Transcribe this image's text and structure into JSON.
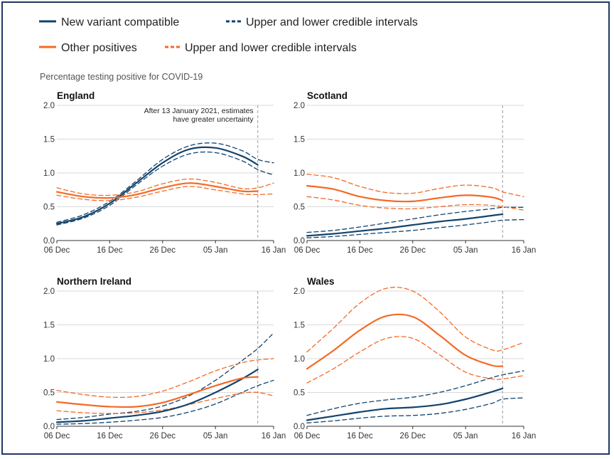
{
  "legend": {
    "items": [
      {
        "label": "New variant compatible",
        "color": "#12436d",
        "style": "solid"
      },
      {
        "label": "Upper and lower credible intervals",
        "color": "#12436d",
        "style": "dashed"
      },
      {
        "label": "Other positives",
        "color": "#f46a25",
        "style": "solid"
      },
      {
        "label": "Upper and lower credible intervals",
        "color": "#f46a25",
        "style": "dashed"
      }
    ]
  },
  "subtitle": "Percentage testing positive for COVID-19",
  "colors": {
    "new_variant": "#12436d",
    "other": "#f46a25",
    "grid": "#d9d9d9",
    "frame": "#1f3864"
  },
  "chart_data": [
    {
      "type": "line",
      "title": "England",
      "annotation": [
        "After 13 January 2021, estimates",
        "have greater uncertainty"
      ],
      "x_ticks": [
        "06 Dec",
        "16 Dec",
        "26 Dec",
        "05 Jan",
        "16 Jan"
      ],
      "x_tick_days": [
        0,
        10,
        20,
        30,
        41
      ],
      "x_domain": [
        0,
        41
      ],
      "y_ticks": [
        "0.0",
        "0.5",
        "1.0",
        "1.5",
        "2.0"
      ],
      "ylim": [
        0,
        2
      ],
      "cutoff_day": 38,
      "series": [
        {
          "name": "New variant compatible",
          "group": "new_variant",
          "x": [
            0,
            5,
            10,
            15,
            20,
            25,
            30,
            35,
            38
          ],
          "y": [
            0.25,
            0.35,
            0.55,
            0.85,
            1.15,
            1.35,
            1.37,
            1.25,
            1.12
          ]
        },
        {
          "group": "new_variant",
          "dashed": true,
          "x": [
            0,
            5,
            10,
            15,
            20,
            25,
            30,
            35,
            38,
            41
          ],
          "y": [
            0.27,
            0.38,
            0.58,
            0.88,
            1.2,
            1.4,
            1.44,
            1.33,
            1.2,
            1.15
          ]
        },
        {
          "group": "new_variant",
          "dashed": true,
          "x": [
            0,
            5,
            10,
            15,
            20,
            25,
            30,
            35,
            38,
            41
          ],
          "y": [
            0.23,
            0.33,
            0.52,
            0.82,
            1.1,
            1.28,
            1.3,
            1.18,
            1.05,
            0.97
          ]
        },
        {
          "name": "Other positives",
          "group": "other",
          "x": [
            0,
            5,
            10,
            15,
            20,
            25,
            30,
            35,
            38
          ],
          "y": [
            0.72,
            0.65,
            0.63,
            0.68,
            0.78,
            0.85,
            0.8,
            0.73,
            0.73
          ]
        },
        {
          "group": "other",
          "dashed": true,
          "x": [
            0,
            5,
            10,
            15,
            20,
            25,
            30,
            35,
            38,
            41
          ],
          "y": [
            0.78,
            0.69,
            0.67,
            0.72,
            0.84,
            0.91,
            0.86,
            0.77,
            0.78,
            0.85
          ]
        },
        {
          "group": "other",
          "dashed": true,
          "x": [
            0,
            5,
            10,
            15,
            20,
            25,
            30,
            35,
            38,
            41
          ],
          "y": [
            0.67,
            0.61,
            0.59,
            0.64,
            0.73,
            0.8,
            0.75,
            0.69,
            0.68,
            0.69
          ]
        }
      ]
    },
    {
      "type": "line",
      "title": "Scotland",
      "x_ticks": [
        "06 Dec",
        "16 Dec",
        "26 Dec",
        "05 Jan",
        "16 Jan"
      ],
      "x_tick_days": [
        0,
        10,
        20,
        30,
        41
      ],
      "x_domain": [
        0,
        41
      ],
      "y_ticks": [
        "0.0",
        "0.5",
        "1.0",
        "1.5",
        "2.0"
      ],
      "ylim": [
        0,
        2
      ],
      "cutoff_day": 37,
      "series": [
        {
          "name": "New variant compatible",
          "group": "new_variant",
          "x": [
            0,
            5,
            10,
            15,
            20,
            25,
            30,
            35,
            37
          ],
          "y": [
            0.07,
            0.1,
            0.14,
            0.18,
            0.23,
            0.28,
            0.32,
            0.37,
            0.39
          ]
        },
        {
          "group": "new_variant",
          "dashed": true,
          "x": [
            0,
            5,
            10,
            15,
            20,
            25,
            30,
            35,
            37,
            41
          ],
          "y": [
            0.12,
            0.15,
            0.2,
            0.26,
            0.32,
            0.38,
            0.43,
            0.47,
            0.49,
            0.49
          ]
        },
        {
          "group": "new_variant",
          "dashed": true,
          "x": [
            0,
            5,
            10,
            15,
            20,
            25,
            30,
            35,
            37,
            41
          ],
          "y": [
            0.04,
            0.06,
            0.09,
            0.12,
            0.15,
            0.19,
            0.23,
            0.28,
            0.3,
            0.31
          ]
        },
        {
          "name": "Other positives",
          "group": "other",
          "x": [
            0,
            5,
            10,
            15,
            20,
            25,
            30,
            35,
            37
          ],
          "y": [
            0.81,
            0.76,
            0.65,
            0.59,
            0.58,
            0.63,
            0.67,
            0.64,
            0.59
          ]
        },
        {
          "group": "other",
          "dashed": true,
          "x": [
            0,
            5,
            10,
            15,
            20,
            25,
            30,
            35,
            37,
            41
          ],
          "y": [
            0.98,
            0.93,
            0.8,
            0.71,
            0.7,
            0.77,
            0.82,
            0.78,
            0.72,
            0.65
          ]
        },
        {
          "group": "other",
          "dashed": true,
          "x": [
            0,
            5,
            10,
            15,
            20,
            25,
            30,
            35,
            37,
            41
          ],
          "y": [
            0.65,
            0.6,
            0.52,
            0.48,
            0.47,
            0.5,
            0.53,
            0.52,
            0.5,
            0.45
          ]
        }
      ]
    },
    {
      "type": "line",
      "title": "Northern Ireland",
      "x_ticks": [
        "06 Dec",
        "16 Dec",
        "26 Dec",
        "05 Jan",
        "16 Jan"
      ],
      "x_tick_days": [
        0,
        10,
        20,
        30,
        41
      ],
      "x_domain": [
        0,
        41
      ],
      "y_ticks": [
        "0.0",
        "0.5",
        "1.0",
        "1.5",
        "2.0"
      ],
      "ylim": [
        0,
        2
      ],
      "cutoff_day": 38,
      "series": [
        {
          "name": "New variant compatible",
          "group": "new_variant",
          "x": [
            0,
            5,
            10,
            15,
            20,
            25,
            30,
            35,
            38
          ],
          "y": [
            0.06,
            0.08,
            0.12,
            0.16,
            0.22,
            0.33,
            0.5,
            0.7,
            0.84
          ]
        },
        {
          "group": "new_variant",
          "dashed": true,
          "x": [
            0,
            5,
            10,
            15,
            20,
            25,
            30,
            35,
            38,
            41
          ],
          "y": [
            0.1,
            0.13,
            0.18,
            0.22,
            0.3,
            0.45,
            0.68,
            0.97,
            1.15,
            1.38
          ]
        },
        {
          "group": "new_variant",
          "dashed": true,
          "x": [
            0,
            5,
            10,
            15,
            20,
            25,
            30,
            35,
            38,
            41
          ],
          "y": [
            0.03,
            0.04,
            0.06,
            0.09,
            0.13,
            0.21,
            0.33,
            0.5,
            0.6,
            0.68
          ]
        },
        {
          "name": "Other positives",
          "group": "other",
          "x": [
            0,
            5,
            10,
            15,
            20,
            25,
            30,
            35,
            38
          ],
          "y": [
            0.36,
            0.32,
            0.29,
            0.29,
            0.35,
            0.47,
            0.6,
            0.71,
            0.73
          ]
        },
        {
          "group": "other",
          "dashed": true,
          "x": [
            0,
            5,
            10,
            15,
            20,
            25,
            30,
            35,
            38,
            41
          ],
          "y": [
            0.53,
            0.47,
            0.43,
            0.44,
            0.52,
            0.66,
            0.82,
            0.94,
            0.98,
            1.0
          ]
        },
        {
          "group": "other",
          "dashed": true,
          "x": [
            0,
            5,
            10,
            15,
            20,
            25,
            30,
            35,
            38,
            41
          ],
          "y": [
            0.23,
            0.2,
            0.19,
            0.2,
            0.24,
            0.32,
            0.41,
            0.49,
            0.5,
            0.45
          ]
        }
      ]
    },
    {
      "type": "line",
      "title": "Wales",
      "x_ticks": [
        "06 Dec",
        "16 Dec",
        "26 Dec",
        "05 Jan",
        "16 Jan"
      ],
      "x_tick_days": [
        0,
        10,
        20,
        30,
        41
      ],
      "x_domain": [
        0,
        41
      ],
      "y_ticks": [
        "0.0",
        "0.5",
        "1.0",
        "1.5",
        "2.0"
      ],
      "ylim": [
        0,
        2
      ],
      "cutoff_day": 37,
      "series": [
        {
          "name": "New variant compatible",
          "group": "new_variant",
          "x": [
            0,
            5,
            10,
            15,
            20,
            25,
            30,
            35,
            37
          ],
          "y": [
            0.09,
            0.15,
            0.21,
            0.26,
            0.28,
            0.32,
            0.4,
            0.51,
            0.56
          ]
        },
        {
          "group": "new_variant",
          "dashed": true,
          "x": [
            0,
            5,
            10,
            15,
            20,
            25,
            30,
            35,
            37,
            41
          ],
          "y": [
            0.16,
            0.26,
            0.34,
            0.39,
            0.43,
            0.5,
            0.6,
            0.72,
            0.76,
            0.82
          ]
        },
        {
          "group": "new_variant",
          "dashed": true,
          "x": [
            0,
            5,
            10,
            15,
            20,
            25,
            30,
            35,
            37,
            41
          ],
          "y": [
            0.05,
            0.08,
            0.12,
            0.15,
            0.16,
            0.19,
            0.25,
            0.34,
            0.4,
            0.42
          ]
        },
        {
          "name": "Other positives",
          "group": "other",
          "x": [
            0,
            5,
            10,
            15,
            20,
            25,
            30,
            35,
            37
          ],
          "y": [
            0.85,
            1.12,
            1.42,
            1.63,
            1.62,
            1.35,
            1.05,
            0.9,
            0.89
          ]
        },
        {
          "group": "other",
          "dashed": true,
          "x": [
            0,
            5,
            10,
            15,
            20,
            25,
            30,
            35,
            37,
            41
          ],
          "y": [
            1.1,
            1.45,
            1.82,
            2.04,
            2.0,
            1.7,
            1.32,
            1.13,
            1.13,
            1.24
          ]
        },
        {
          "group": "other",
          "dashed": true,
          "x": [
            0,
            5,
            10,
            15,
            20,
            25,
            30,
            35,
            37,
            41
          ],
          "y": [
            0.64,
            0.85,
            1.1,
            1.3,
            1.3,
            1.06,
            0.8,
            0.7,
            0.7,
            0.75
          ]
        }
      ]
    }
  ]
}
